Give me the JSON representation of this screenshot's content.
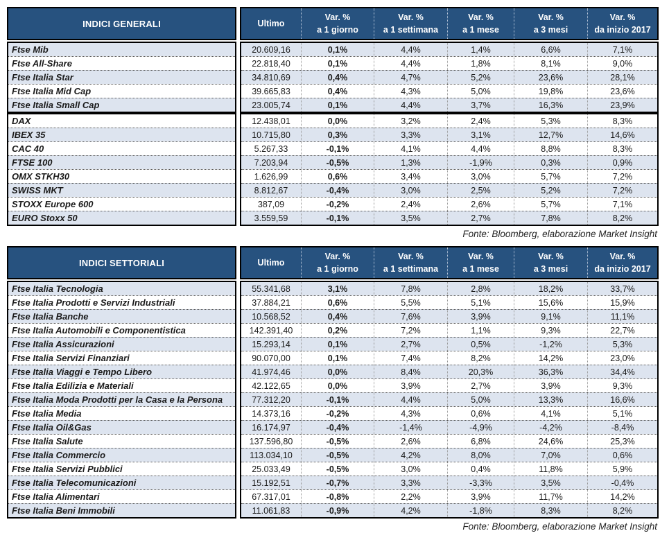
{
  "columns": {
    "ultimo": "Ultimo",
    "var_headers": [
      {
        "key": "var-1-giorno",
        "line1": "Var. %",
        "line2": "a 1 giorno"
      },
      {
        "key": "var-1-settimana",
        "line1": "Var. %",
        "line2": "a 1 settimana"
      },
      {
        "key": "var-1-mese",
        "line1": "Var. %",
        "line2": "a 1 mese"
      },
      {
        "key": "var-3-mesi",
        "line1": "Var. %",
        "line2": "a 3 mesi"
      },
      {
        "key": "var-da-inizio-2017",
        "line1": "Var. %",
        "line2": "da inizio 2017"
      }
    ]
  },
  "tables": [
    {
      "title": "INDICI GENERALI",
      "source_note": "Fonte: Bloomberg, elaborazione Market Insight",
      "groups": [
        {
          "stripe": "odd",
          "rows": [
            {
              "name": "Ftse Mib",
              "ultimo": "20.609,16",
              "vars": [
                "0,1%",
                "4,4%",
                "1,4%",
                "6,6%",
                "7,1%"
              ]
            },
            {
              "name": "Ftse All-Share",
              "ultimo": "22.818,40",
              "vars": [
                "0,1%",
                "4,4%",
                "1,8%",
                "8,1%",
                "9,0%"
              ]
            },
            {
              "name": "Ftse Italia Star",
              "ultimo": "34.810,69",
              "vars": [
                "0,4%",
                "4,7%",
                "5,2%",
                "23,6%",
                "28,1%"
              ]
            },
            {
              "name": "Ftse Italia Mid Cap",
              "ultimo": "39.665,83",
              "vars": [
                "0,4%",
                "4,3%",
                "5,0%",
                "19,8%",
                "23,6%"
              ]
            },
            {
              "name": "Ftse Italia Small Cap",
              "ultimo": "23.005,74",
              "vars": [
                "0,1%",
                "4,4%",
                "3,7%",
                "16,3%",
                "23,9%"
              ]
            }
          ]
        },
        {
          "stripe": "even",
          "rows": [
            {
              "name": "DAX",
              "ultimo": "12.438,01",
              "vars": [
                "0,0%",
                "3,2%",
                "2,4%",
                "5,3%",
                "8,3%"
              ]
            },
            {
              "name": "IBEX 35",
              "ultimo": "10.715,80",
              "vars": [
                "0,3%",
                "3,3%",
                "3,1%",
                "12,7%",
                "14,6%"
              ]
            },
            {
              "name": "CAC 40",
              "ultimo": "5.267,33",
              "vars": [
                "-0,1%",
                "4,1%",
                "4,4%",
                "8,8%",
                "8,3%"
              ]
            },
            {
              "name": "FTSE 100",
              "ultimo": "7.203,94",
              "vars": [
                "-0,5%",
                "1,3%",
                "-1,9%",
                "0,3%",
                "0,9%"
              ]
            },
            {
              "name": "OMX STKH30",
              "ultimo": "1.626,99",
              "vars": [
                "0,6%",
                "3,4%",
                "3,0%",
                "5,7%",
                "7,2%"
              ]
            },
            {
              "name": "SWISS MKT",
              "ultimo": "8.812,67",
              "vars": [
                "-0,4%",
                "3,0%",
                "2,5%",
                "5,2%",
                "7,2%"
              ]
            },
            {
              "name": "STOXX Europe 600",
              "ultimo": "387,09",
              "vars": [
                "-0,2%",
                "2,4%",
                "2,6%",
                "5,7%",
                "7,1%"
              ]
            },
            {
              "name": "EURO Stoxx 50",
              "ultimo": "3.559,59",
              "vars": [
                "-0,1%",
                "3,5%",
                "2,7%",
                "7,8%",
                "8,2%"
              ]
            }
          ]
        }
      ]
    },
    {
      "title": "INDICI SETTORIALI",
      "source_note": "Fonte: Bloomberg, elaborazione Market Insight",
      "groups": [
        {
          "stripe": "odd",
          "rows": [
            {
              "name": "Ftse Italia Tecnologia",
              "ultimo": "55.341,68",
              "vars": [
                "3,1%",
                "7,8%",
                "2,8%",
                "18,2%",
                "33,7%"
              ]
            },
            {
              "name": "Ftse Italia Prodotti e Servizi Industriali",
              "ultimo": "37.884,21",
              "vars": [
                "0,6%",
                "5,5%",
                "5,1%",
                "15,6%",
                "15,9%"
              ]
            },
            {
              "name": "Ftse Italia Banche",
              "ultimo": "10.568,52",
              "vars": [
                "0,4%",
                "7,6%",
                "3,9%",
                "9,1%",
                "11,1%"
              ]
            },
            {
              "name": "Ftse Italia Automobili e Componentistica",
              "ultimo": "142.391,40",
              "vars": [
                "0,2%",
                "7,2%",
                "1,1%",
                "9,3%",
                "22,7%"
              ]
            },
            {
              "name": "Ftse Italia Assicurazioni",
              "ultimo": "15.293,14",
              "vars": [
                "0,1%",
                "2,7%",
                "0,5%",
                "-1,2%",
                "5,3%"
              ]
            },
            {
              "name": "Ftse Italia Servizi Finanziari",
              "ultimo": "90.070,00",
              "vars": [
                "0,1%",
                "7,4%",
                "8,2%",
                "14,2%",
                "23,0%"
              ]
            },
            {
              "name": "Ftse Italia Viaggi e Tempo Libero",
              "ultimo": "41.974,46",
              "vars": [
                "0,0%",
                "8,4%",
                "20,3%",
                "36,3%",
                "34,4%"
              ]
            },
            {
              "name": "Ftse Italia Edilizia e Materiali",
              "ultimo": "42.122,65",
              "vars": [
                "0,0%",
                "3,9%",
                "2,7%",
                "3,9%",
                "9,3%"
              ]
            },
            {
              "name": "Ftse Italia Moda Prodotti per la Casa e la Persona",
              "ultimo": "77.312,20",
              "vars": [
                "-0,1%",
                "4,4%",
                "5,0%",
                "13,3%",
                "16,6%"
              ]
            },
            {
              "name": "Ftse Italia Media",
              "ultimo": "14.373,16",
              "vars": [
                "-0,2%",
                "4,3%",
                "0,6%",
                "4,1%",
                "5,1%"
              ]
            },
            {
              "name": "Ftse Italia Oil&Gas",
              "ultimo": "16.174,97",
              "vars": [
                "-0,4%",
                "-1,4%",
                "-4,9%",
                "-4,2%",
                "-8,4%"
              ]
            },
            {
              "name": "Ftse Italia Salute",
              "ultimo": "137.596,80",
              "vars": [
                "-0,5%",
                "2,6%",
                "6,8%",
                "24,6%",
                "25,3%"
              ]
            },
            {
              "name": "Ftse Italia Commercio",
              "ultimo": "113.034,10",
              "vars": [
                "-0,5%",
                "4,2%",
                "8,0%",
                "7,0%",
                "0,6%"
              ]
            },
            {
              "name": "Ftse Italia Servizi Pubblici",
              "ultimo": "25.033,49",
              "vars": [
                "-0,5%",
                "3,0%",
                "0,4%",
                "11,8%",
                "5,9%"
              ]
            },
            {
              "name": "Ftse Italia Telecomunicazioni",
              "ultimo": "15.192,51",
              "vars": [
                "-0,7%",
                "3,3%",
                "-3,3%",
                "3,5%",
                "-0,4%"
              ]
            },
            {
              "name": "Ftse Italia Alimentari",
              "ultimo": "67.317,01",
              "vars": [
                "-0,8%",
                "2,2%",
                "3,9%",
                "11,7%",
                "14,2%"
              ]
            },
            {
              "name": "Ftse Italia Beni Immobili",
              "ultimo": "11.061,83",
              "vars": [
                "-0,9%",
                "4,2%",
                "-1,8%",
                "8,3%",
                "8,2%"
              ]
            }
          ]
        }
      ]
    }
  ],
  "colors": {
    "header_blue": "#27527f",
    "shaded_row": "#dde4ef",
    "border_black": "#000000"
  }
}
